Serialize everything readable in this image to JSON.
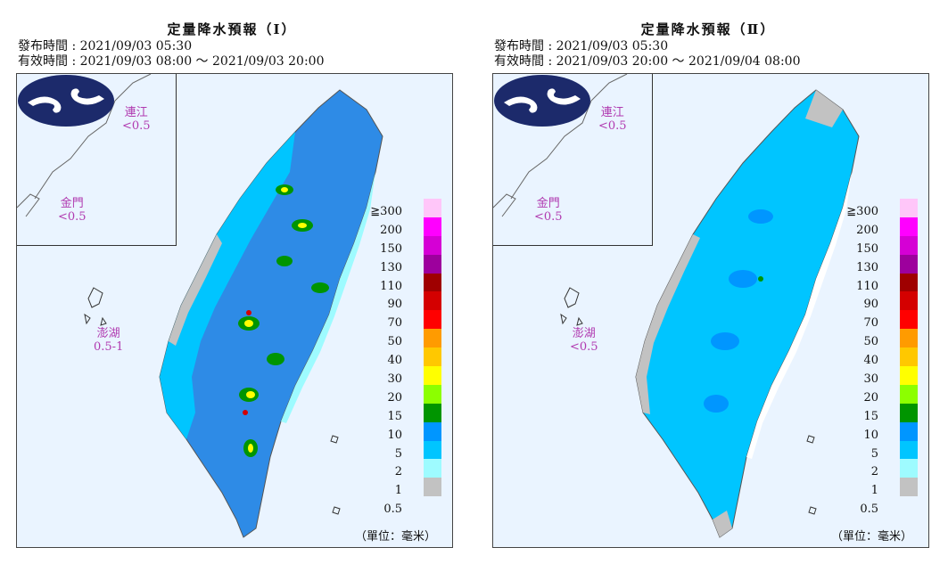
{
  "panels": [
    {
      "title": "定量降水預報（Ⅰ）",
      "issue_time": "發布時間 : 2021/09/03 05:30",
      "valid_time": "有效時間 : 2021/09/03 08:00 ～ 2021/09/03 20:00",
      "islands": {
        "matsu": {
          "name": "連江",
          "value": "<0.5"
        },
        "kinmen": {
          "name": "金門",
          "value": "<0.5"
        },
        "penghu": {
          "name": "澎湖",
          "value": "0.5-1"
        }
      },
      "unit": "（單位：毫米）"
    },
    {
      "title": "定量降水預報（Ⅱ）",
      "issue_time": "發布時間 : 2021/09/03 05:30",
      "valid_time": "有效時間 : 2021/09/03 20:00 ～ 2021/09/04 08:00",
      "islands": {
        "matsu": {
          "name": "連江",
          "value": "<0.5"
        },
        "kinmen": {
          "name": "金門",
          "value": "<0.5"
        },
        "penghu": {
          "name": "澎湖",
          "value": "<0.5"
        }
      },
      "unit": "（單位：毫米）"
    }
  ],
  "legend": {
    "levels": [
      "≧300",
      "200",
      "150",
      "130",
      "110",
      "90",
      "70",
      "50",
      "40",
      "30",
      "20",
      "15",
      "10",
      "5",
      "2",
      "1",
      "0.5"
    ],
    "colors": [
      "#ffc6f9",
      "#ff00ff",
      "#d500d5",
      "#9d009d",
      "#9f0000",
      "#d40000",
      "#ff0000",
      "#ff9b00",
      "#ffc800",
      "#ffff00",
      "#8cff00",
      "#009500",
      "#0096ff",
      "#00c5ff",
      "#9efbff",
      "#c2c2c2"
    ]
  }
}
